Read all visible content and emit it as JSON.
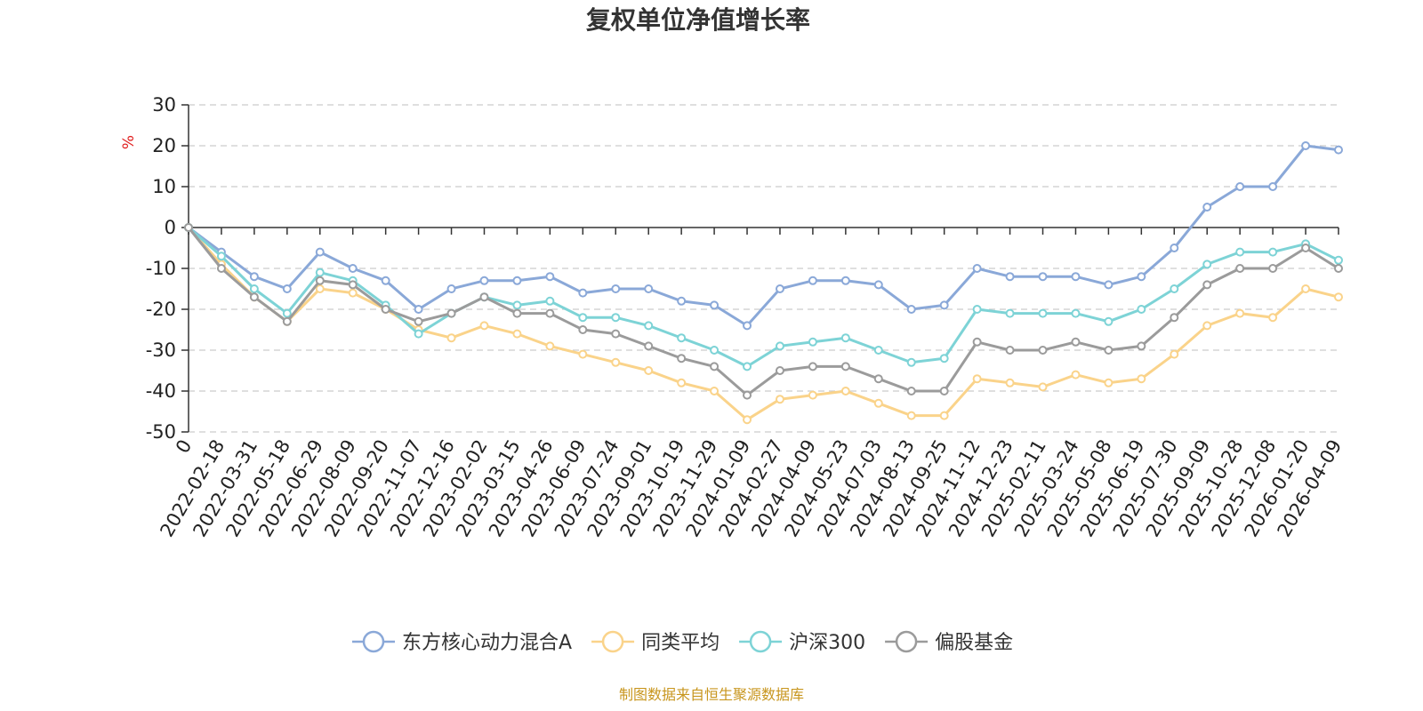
{
  "chart_data": {
    "type": "line",
    "title": "复权单位净值增长率",
    "ylabel": "%",
    "ylim": [
      -50,
      30
    ],
    "yticks": [
      "-50",
      "-40",
      "-30",
      "-20",
      "-10",
      "0",
      "10",
      "20",
      "30"
    ],
    "grid": true,
    "legend_position": "bottom-center",
    "categories": [
      "0",
      "2022-02-18",
      "2022-03-31",
      "2022-05-18",
      "2022-06-29",
      "2022-08-09",
      "2022-09-20",
      "2022-11-07",
      "2022-12-16",
      "2023-02-02",
      "2023-03-15",
      "2023-04-26",
      "2023-06-09",
      "2023-07-24",
      "2023-09-01",
      "2023-10-19",
      "2023-11-29",
      "2024-01-09",
      "2024-02-27",
      "2024-04-09",
      "2024-05-23",
      "2024-07-03",
      "2024-08-13",
      "2024-09-25",
      "2024-11-12",
      "2024-12-23",
      "2025-02-11",
      "2025-03-24",
      "2025-05-08",
      "2025-06-19",
      "2025-07-30",
      "2025-09-09",
      "2025-10-28",
      "2025-12-08",
      "2026-01-20",
      "2026-04-09"
    ],
    "series": [
      {
        "name": "东方核心动力混合A",
        "color": "#8aa8d8",
        "values": [
          0,
          -6,
          -12,
          -15,
          -6,
          -10,
          -13,
          -20,
          -15,
          -13,
          -13,
          -12,
          -16,
          -15,
          -15,
          -18,
          -19,
          -24,
          -15,
          -13,
          -13,
          -14,
          -20,
          -19,
          -10,
          -12,
          -12,
          -12,
          -14,
          -12,
          -5,
          5,
          10,
          10,
          20,
          19
        ]
      },
      {
        "name": "同类平均",
        "color": "#fad38a",
        "values": [
          0,
          -9,
          -17,
          -23,
          -15,
          -16,
          -20,
          -25,
          -27,
          -24,
          -26,
          -29,
          -31,
          -33,
          -35,
          -38,
          -40,
          -47,
          -42,
          -41,
          -40,
          -43,
          -46,
          -46,
          -37,
          -38,
          -39,
          -36,
          -38,
          -37,
          -31,
          -24,
          -21,
          -22,
          -15,
          -17
        ]
      },
      {
        "name": "沪深300",
        "color": "#7dd3d6",
        "values": [
          0,
          -7,
          -15,
          -21,
          -11,
          -13,
          -19,
          -26,
          -21,
          -17,
          -19,
          -18,
          -22,
          -22,
          -24,
          -27,
          -30,
          -34,
          -29,
          -28,
          -27,
          -30,
          -33,
          -32,
          -20,
          -21,
          -21,
          -21,
          -23,
          -20,
          -15,
          -9,
          -6,
          -6,
          -4,
          -8
        ]
      },
      {
        "name": "偏股基金",
        "color": "#9b9b9b",
        "values": [
          0,
          -10,
          -17,
          -23,
          -13,
          -14,
          -20,
          -23,
          -21,
          -17,
          -21,
          -21,
          -25,
          -26,
          -29,
          -32,
          -34,
          -41,
          -35,
          -34,
          -34,
          -37,
          -40,
          -40,
          -28,
          -30,
          -30,
          -28,
          -30,
          -29,
          -22,
          -14,
          -10,
          -10,
          -5,
          -10
        ]
      }
    ]
  },
  "footer": {
    "source": "制图数据来自恒生聚源数据库"
  }
}
